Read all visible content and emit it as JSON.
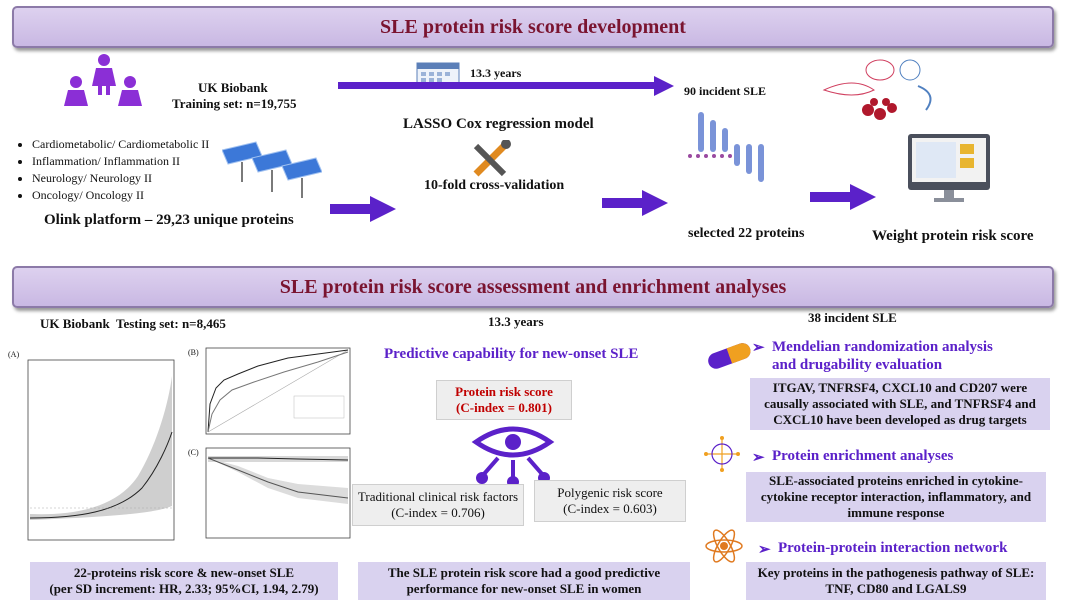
{
  "section1": {
    "banner": "SLE protein risk score development",
    "biobank": "UK Biobank",
    "training": "Training set: n=19,755",
    "followup": "13.3 years",
    "incident": "90 incident SLE",
    "platforms": [
      "Cardiometabolic/ Cardiometabolic II",
      "Inflammation/ Inflammation II",
      "Neurology/ Neurology II",
      "Oncology/ Oncology II"
    ],
    "olink": "Olink platform – 29,23 unique proteins",
    "lasso": "LASSO Cox regression model",
    "cv": "10-fold cross-validation",
    "selected": "selected 22 proteins",
    "weight": "Weight protein risk score"
  },
  "section2": {
    "banner": "SLE protein risk score assessment and enrichment analyses",
    "testing": "UK Biobank  Testing set: n=8,465",
    "followup": "13.3 years",
    "incident": "38 incident SLE",
    "panel_labels": [
      "(A)",
      "(B)",
      "(C)"
    ],
    "left_box": [
      "22-proteins risk score & new-onset SLE",
      "(per SD increment: HR, 2.33; 95%CI, 1.94, 2.79)"
    ],
    "predictive_title": "Predictive capability for new-onset SLE",
    "protein_score": [
      "Protein risk score",
      "(C-index = 0.801)"
    ],
    "traditional": [
      "Traditional clinical risk factors",
      "(C-index = 0.706)"
    ],
    "polygenic": [
      "Polygenic risk score",
      "(C-index = 0.603)"
    ],
    "middle_box": [
      "The SLE protein risk score had a good predictive",
      "performance for new-onset SLE in women"
    ],
    "mr_heading": [
      "Mendelian randomization analysis",
      "and drugability evaluation"
    ],
    "mr_box": [
      "ITGAV, TNFRSF4, CXCL10 and CD207 were",
      "causally associated with SLE, and TNFRSF4 and",
      "CXCL10 have been developed as drug targets"
    ],
    "enrich_heading": "Protein enrichment analyses",
    "enrich_box": [
      "SLE-associated proteins enriched in cytokine-",
      "cytokine receptor interaction, inflammatory, and",
      "immune response"
    ],
    "ppi_heading": "Protein-protein interaction network",
    "ppi_box": [
      "Key proteins in the pathogenesis pathway of SLE:",
      "TNF, CD80 and LGALS9"
    ],
    "bullet": "➢"
  },
  "colors": {
    "banner_text": "#7a1430",
    "accent": "#5b21c9",
    "protein_red": "#c00000",
    "box": "#d9d2ef"
  }
}
